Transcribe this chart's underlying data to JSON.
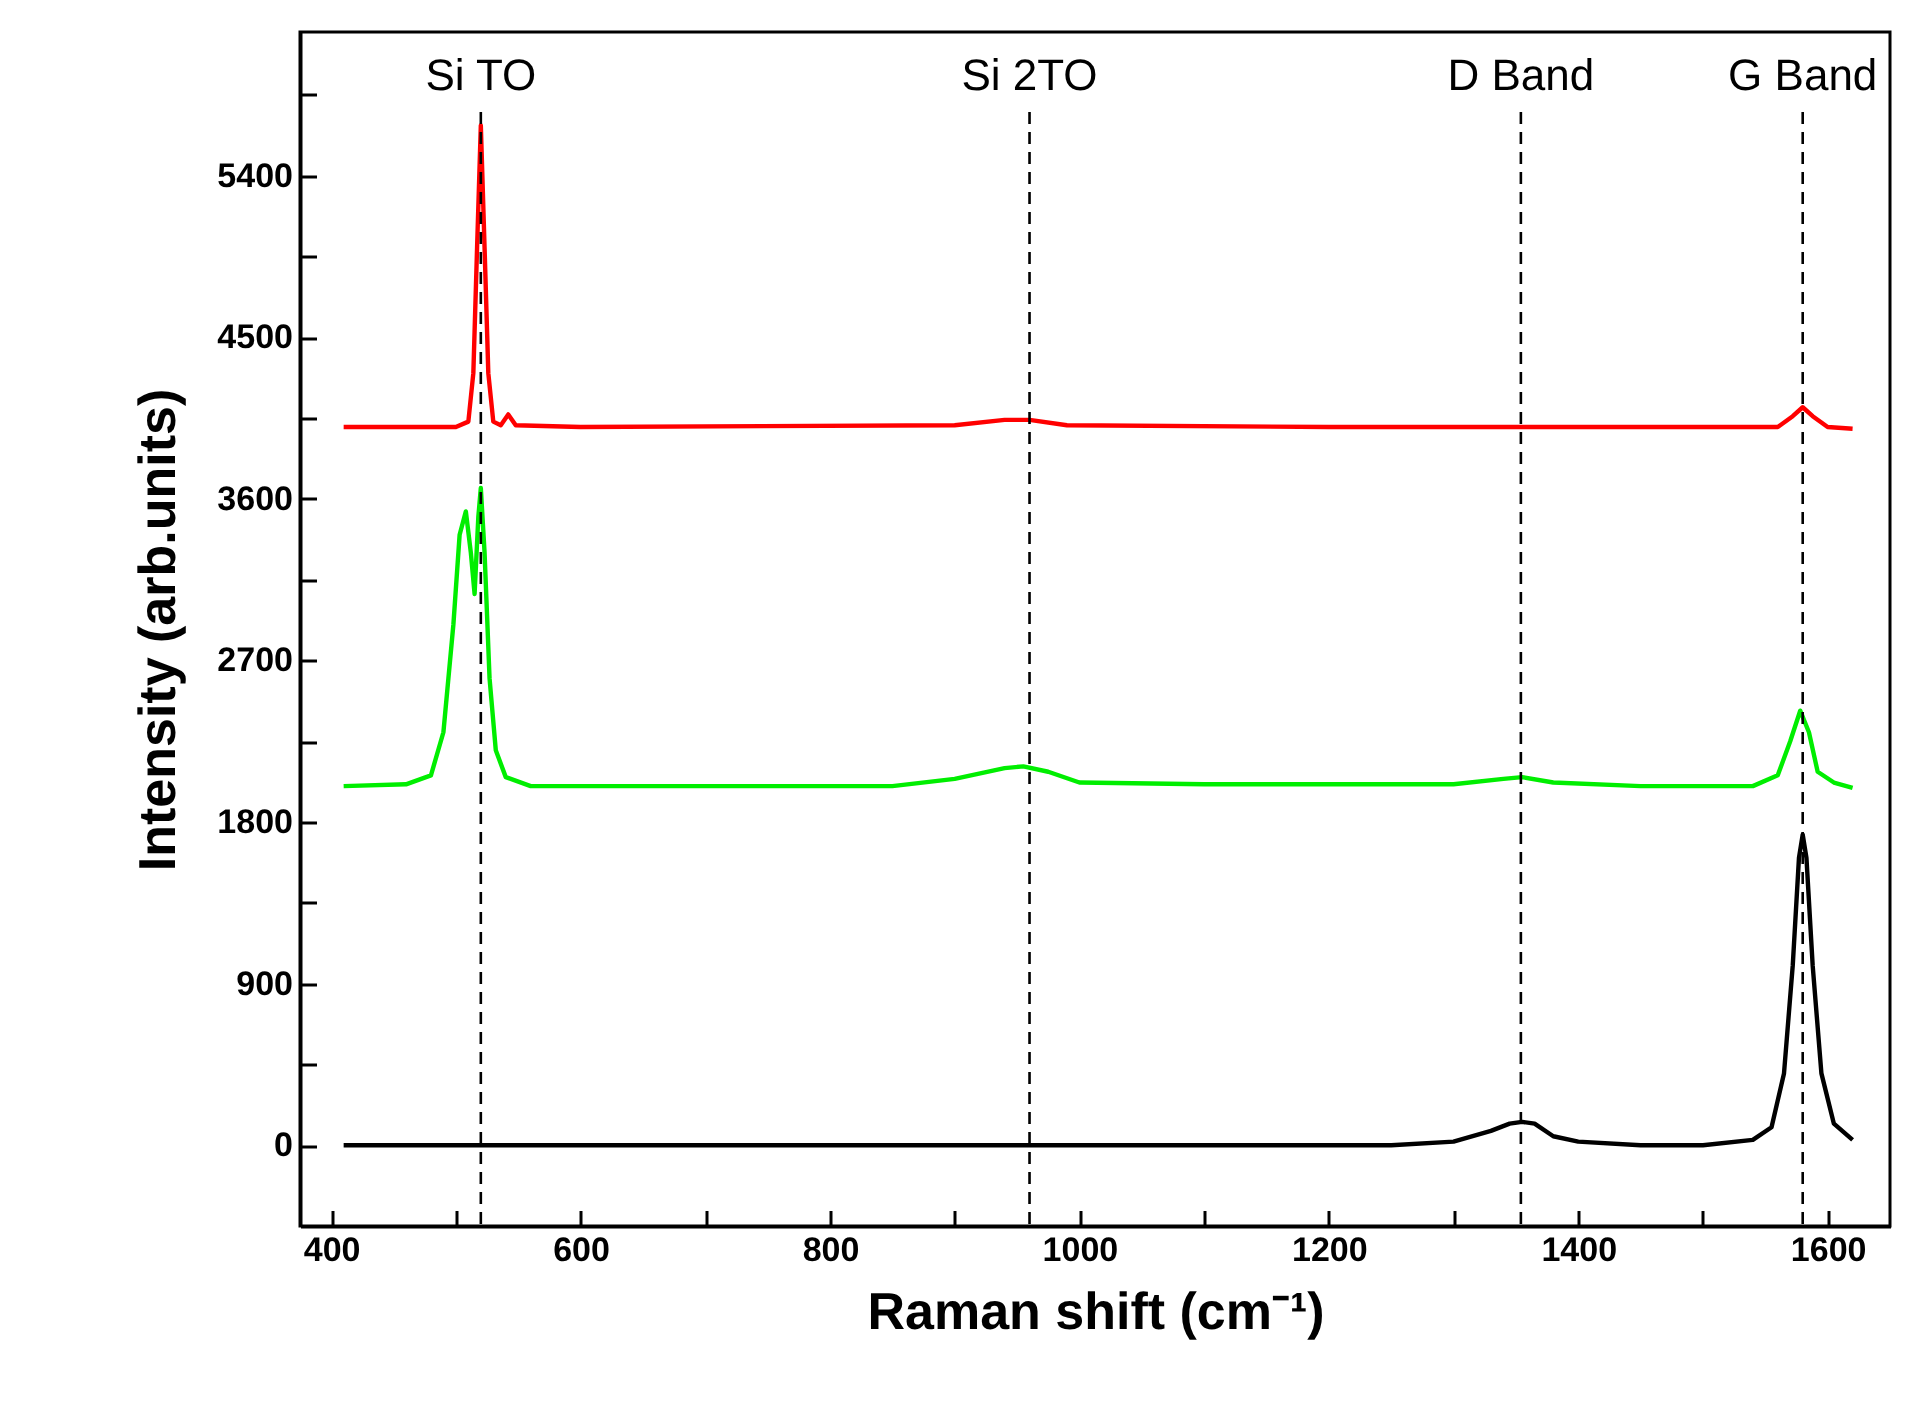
{
  "chart_data": {
    "type": "line",
    "xlabel": "Raman shift (cm⁻¹)",
    "ylabel": "Intensity (arb.units)",
    "xlim": [
      375,
      1650
    ],
    "ylim": [
      -450,
      6200
    ],
    "xticks": [
      400,
      {
        "value": 500,
        "label": null
      },
      600,
      {
        "value": 700,
        "label": null
      },
      800,
      {
        "value": 900,
        "label": null
      },
      1000,
      {
        "value": 1100,
        "label": null
      },
      1200,
      {
        "value": 1300,
        "label": null
      },
      1400,
      {
        "value": 1500,
        "label": null
      },
      1600
    ],
    "yticks": [
      0,
      {
        "value": 450,
        "label": null
      },
      900,
      {
        "value": 1350,
        "label": null
      },
      1800,
      {
        "value": 2250,
        "label": null
      },
      2700,
      {
        "value": 3150,
        "label": null
      },
      3600,
      {
        "value": 4050,
        "label": null
      },
      4500,
      {
        "value": 4950,
        "label": null
      },
      5400,
      {
        "value": 5850,
        "label": null
      }
    ],
    "grid": false,
    "line_style": "solid",
    "marker": "none",
    "ref_lines": [
      {
        "axis": "x",
        "value": 520,
        "label": "Si TO",
        "color": "#000000",
        "line_style": "dashed"
      },
      {
        "axis": "x",
        "value": 960,
        "label": "Si 2TO",
        "color": "#000000",
        "line_style": "dashed"
      },
      {
        "axis": "x",
        "value": 1354,
        "label": "D Band",
        "color": "#000000",
        "line_style": "dashed"
      },
      {
        "axis": "x",
        "value": 1580,
        "label": "G Band",
        "color": "#000000",
        "line_style": "dashed"
      }
    ],
    "series": [
      {
        "color": "#000000",
        "x": [
          410,
          500,
          700,
          900,
          1100,
          1250,
          1300,
          1330,
          1345,
          1355,
          1365,
          1380,
          1400,
          1450,
          1500,
          1540,
          1555,
          1565,
          1572,
          1577,
          1580,
          1583,
          1588,
          1595,
          1605,
          1620
        ],
        "values": [
          0,
          0,
          0,
          0,
          0,
          0,
          20,
          80,
          120,
          130,
          120,
          50,
          20,
          0,
          0,
          30,
          100,
          400,
          1000,
          1600,
          1730,
          1600,
          1000,
          400,
          120,
          30
        ]
      },
      {
        "color": "#00ee00",
        "x": [
          410,
          460,
          480,
          490,
          498,
          503,
          508,
          512,
          515,
          518,
          520,
          523,
          527,
          532,
          540,
          560,
          700,
          850,
          900,
          940,
          955,
          975,
          1000,
          1100,
          1200,
          1300,
          1340,
          1355,
          1380,
          1450,
          1540,
          1560,
          1570,
          1578,
          1585,
          1592,
          1605,
          1620
        ],
        "values": [
          2000,
          2010,
          2060,
          2300,
          2900,
          3400,
          3530,
          3300,
          3070,
          3500,
          3660,
          3300,
          2600,
          2200,
          2050,
          2000,
          2000,
          2000,
          2040,
          2100,
          2110,
          2080,
          2020,
          2010,
          2010,
          2010,
          2040,
          2050,
          2020,
          2000,
          2000,
          2060,
          2250,
          2420,
          2300,
          2080,
          2020,
          1990
        ]
      },
      {
        "color": "#ff0000",
        "x": [
          410,
          500,
          510,
          514,
          517,
          520,
          523,
          526,
          530,
          536,
          542,
          548,
          600,
          900,
          940,
          960,
          990,
          1200,
          1400,
          1560,
          1572,
          1580,
          1588,
          1600,
          1620
        ],
        "values": [
          4000,
          4000,
          4030,
          4300,
          5000,
          5680,
          5000,
          4300,
          4030,
          4010,
          4070,
          4010,
          4000,
          4010,
          4040,
          4040,
          4010,
          4000,
          4000,
          4000,
          4060,
          4110,
          4060,
          4000,
          3990
        ]
      }
    ]
  }
}
